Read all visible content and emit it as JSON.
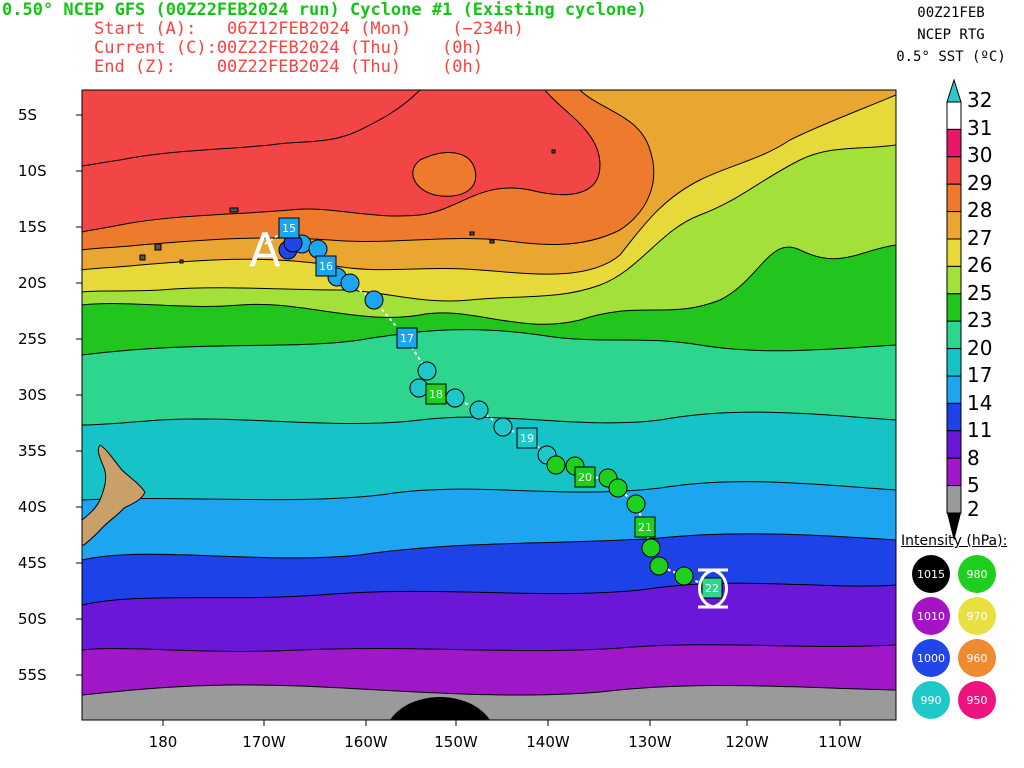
{
  "header": {
    "title": "0.50° NCEP GFS (00Z22FEB2024 run) Cyclone #1 (Existing cyclone)",
    "start": "Start (A):   06Z12FEB2024 (Mon)    (−234h)",
    "current": "Current (C):00Z22FEB2024 (Thu)    (0h)",
    "end": "End (Z):    00Z22FEB2024 (Thu)    (0h)"
  },
  "sst_info": {
    "line1": "00Z21FEB",
    "line2": "NCEP RTG",
    "line3": "0.5° SST (ºC)"
  },
  "lat_labels": [
    "5S",
    "10S",
    "15S",
    "20S",
    "25S",
    "30S",
    "35S",
    "40S",
    "45S",
    "50S",
    "55S"
  ],
  "lon_labels": [
    "180",
    "170W",
    "160W",
    "150W",
    "140W",
    "130W",
    "120W",
    "110W"
  ],
  "colorbar": {
    "labels": [
      "32",
      "31",
      "30",
      "29",
      "28",
      "27",
      "26",
      "25",
      "23",
      "20",
      "17",
      "14",
      "11",
      "8",
      "5",
      "2"
    ],
    "colors": [
      "#ffffff",
      "#e8176b",
      "#f24646",
      "#ee7a2e",
      "#e9a631",
      "#e8d93a",
      "#a3e03a",
      "#22c51e",
      "#2ed58f",
      "#16c4c8",
      "#1da6ef",
      "#1d43e8",
      "#6a17d8",
      "#a017c8",
      "#9a9a9a"
    ],
    "top_arrow": "#2ec8c8",
    "bottom_arrow": "#000000"
  },
  "intensity": {
    "title": "Intensity (hPa):",
    "items": [
      {
        "label": "1015",
        "color": "#000000"
      },
      {
        "label": "980",
        "color": "#1ed01e"
      },
      {
        "label": "1010",
        "color": "#a514c4"
      },
      {
        "label": "970",
        "color": "#e8e040"
      },
      {
        "label": "1000",
        "color": "#2045e8"
      },
      {
        "label": "960",
        "color": "#ee8a30"
      },
      {
        "label": "990",
        "color": "#1ec8c8"
      },
      {
        "label": "950",
        "color": "#ee1480"
      }
    ]
  },
  "track": {
    "start_marker": "A",
    "day_labels": [
      "15",
      "16",
      "17",
      "18",
      "19",
      "20",
      "21",
      "22"
    ]
  }
}
